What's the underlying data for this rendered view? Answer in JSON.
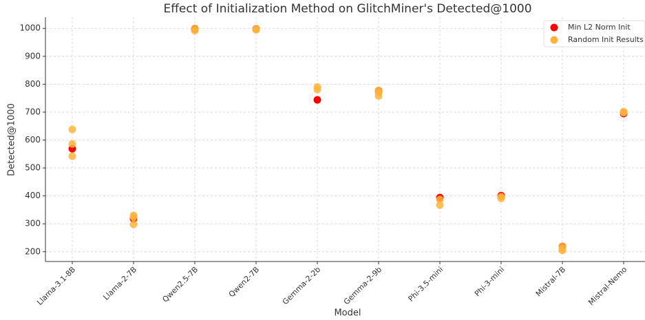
{
  "chart_data": {
    "type": "scatter",
    "title": "Effect of Initialization Method on GlitchMiner's Detected@1000",
    "xlabel": "Model",
    "ylabel": "Detected@1000",
    "categories": [
      "Llama-3.1-8B",
      "Llama-2-7B",
      "Qwen2.5-7B",
      "Qwen2-7B",
      "Gemma-2-2b",
      "Gemma-2-9b",
      "Phi-3.5-mini",
      "Phi-3-mini",
      "Mistral-7B",
      "Mistral-Nemo"
    ],
    "series": [
      {
        "name": "Min L2 Norm Init",
        "color": "#ff0000",
        "x": [
          "Llama-3.1-8B",
          "Llama-2-7B",
          "Qwen2.5-7B",
          "Qwen2-7B",
          "Gemma-2-2b",
          "Gemma-2-9b",
          "Phi-3.5-mini",
          "Phi-3-mini",
          "Mistral-7B",
          "Mistral-Nemo"
        ],
        "values": [
          569,
          318,
          998,
          998,
          744,
          775,
          394,
          401,
          219,
          695
        ]
      },
      {
        "name": "Random Init Results",
        "color": "#fdb43c",
        "x": [
          "Llama-3.1-8B",
          "Llama-3.1-8B",
          "Llama-3.1-8B",
          "Llama-2-7B",
          "Llama-2-7B",
          "Llama-2-7B",
          "Qwen2.5-7B",
          "Qwen2.5-7B",
          "Qwen2-7B",
          "Qwen2-7B",
          "Gemma-2-2b",
          "Gemma-2-2b",
          "Gemma-2-9b",
          "Gemma-2-9b",
          "Gemma-2-9b",
          "Phi-3.5-mini",
          "Phi-3.5-mini",
          "Phi-3-mini",
          "Phi-3-mini",
          "Mistral-7B",
          "Mistral-7B",
          "Mistral-7B",
          "Mistral-Nemo",
          "Mistral-Nemo"
        ],
        "values": [
          638,
          586,
          542,
          330,
          323,
          298,
          1000,
          992,
          995,
          998,
          790,
          781,
          778,
          771,
          758,
          387,
          367,
          397,
          391,
          219,
          210,
          205,
          702,
          698
        ]
      }
    ],
    "ylim": [
      165,
      1040
    ],
    "yticks": [
      200,
      300,
      400,
      500,
      600,
      700,
      800,
      900,
      1000
    ],
    "grid": true,
    "legend": "upper right"
  }
}
